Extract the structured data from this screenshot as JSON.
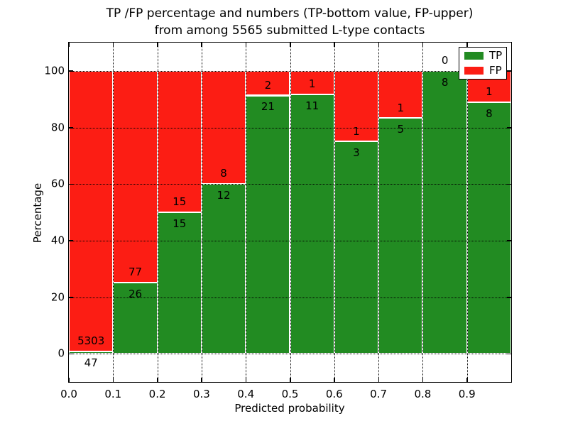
{
  "figure": {
    "title_line1": "TP /FP percentage and numbers (TP-bottom value, FP-upper)",
    "title_line2": "from among 5565 submitted L-type contacts"
  },
  "chart_data": {
    "type": "bar",
    "stacked": true,
    "title": "TP /FP percentage and numbers (TP-bottom value, FP-upper)\nfrom among 5565 submitted L-type contacts",
    "xlabel": "Predicted probability",
    "ylabel": "Percentage",
    "xlim": [
      0.0,
      1.0
    ],
    "ylim": [
      -10,
      110
    ],
    "grid": {
      "style": "dotted",
      "color": "#000000"
    },
    "x_ticks": [
      {
        "value": 0.0,
        "label": "0.0"
      },
      {
        "value": 0.1,
        "label": "0.1"
      },
      {
        "value": 0.2,
        "label": "0.2"
      },
      {
        "value": 0.3,
        "label": "0.3"
      },
      {
        "value": 0.4,
        "label": "0.4"
      },
      {
        "value": 0.5,
        "label": "0.5"
      },
      {
        "value": 0.6,
        "label": "0.6"
      },
      {
        "value": 0.7,
        "label": "0.7"
      },
      {
        "value": 0.8,
        "label": "0.8"
      },
      {
        "value": 0.9,
        "label": "0.9"
      }
    ],
    "y_ticks": [
      {
        "value": 0,
        "label": "0"
      },
      {
        "value": 20,
        "label": "20"
      },
      {
        "value": 40,
        "label": "40"
      },
      {
        "value": 60,
        "label": "60"
      },
      {
        "value": 80,
        "label": "80"
      },
      {
        "value": 100,
        "label": "100"
      }
    ],
    "bin_width": 0.1,
    "bin_starts": [
      0.0,
      0.1,
      0.2,
      0.3,
      0.4,
      0.5,
      0.6,
      0.7,
      0.8,
      0.9
    ],
    "series": [
      {
        "name": "TP",
        "color": "#228b22",
        "counts": [
          47,
          26,
          15,
          12,
          21,
          11,
          3,
          5,
          8,
          8
        ]
      },
      {
        "name": "FP",
        "color": "#fc1d14",
        "counts": [
          5303,
          77,
          15,
          8,
          2,
          1,
          1,
          1,
          0,
          1
        ]
      }
    ],
    "tp_percent": [
      0.88,
      25.24,
      50.0,
      60.0,
      91.3,
      91.67,
      75.0,
      83.33,
      100.0,
      88.89
    ],
    "legend": {
      "position": "upper-right",
      "entries": [
        {
          "label": "TP",
          "color": "#228b22"
        },
        {
          "label": "FP",
          "color": "#fc1d14"
        }
      ]
    }
  }
}
